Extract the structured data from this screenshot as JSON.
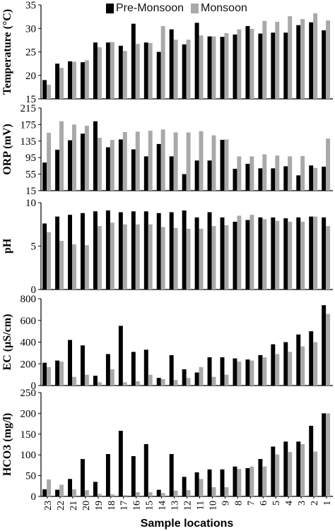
{
  "legend": {
    "pre_label": "Pre-Monsoon",
    "mon_label": "Monsoon"
  },
  "colors": {
    "pre": "#000000",
    "mon": "#a9a9a9"
  },
  "chart_data": [
    {
      "type": "bar",
      "title": "",
      "ylabel": "Temperature (°C)",
      "xlabel": "Sample locations",
      "categories": [
        "23",
        "22",
        "21",
        "20",
        "19",
        "18",
        "17",
        "16",
        "15",
        "14",
        "13",
        "12",
        "11",
        "10",
        "9",
        "8",
        "7",
        "6",
        "5",
        "4",
        "3",
        "2",
        "1"
      ],
      "ylim": [
        15,
        35
      ],
      "yticks": [
        15,
        20,
        25,
        30,
        35
      ],
      "series": [
        {
          "name": "Pre-Monsoon",
          "values": [
            19,
            22.5,
            23,
            22.8,
            27,
            27,
            26.3,
            31,
            27,
            25,
            29.8,
            26.6,
            31.2,
            28.3,
            28.2,
            28.7,
            30.5,
            28.9,
            29.1,
            29.1,
            30.7,
            31.3,
            29.6
          ]
        },
        {
          "name": "Monsoon",
          "values": [
            18,
            21.6,
            22.9,
            23.2,
            26,
            27.1,
            25.2,
            26.7,
            26.9,
            30.5,
            27.6,
            27.6,
            28.5,
            28.3,
            29,
            29.8,
            29.9,
            31.6,
            31.4,
            32.6,
            32,
            33.2,
            31.7
          ]
        }
      ]
    },
    {
      "type": "bar",
      "title": "",
      "ylabel": "ORP (mV)",
      "xlabel": "Sample locations",
      "categories": [
        "23",
        "22",
        "21",
        "20",
        "19",
        "18",
        "17",
        "16",
        "15",
        "14",
        "13",
        "12",
        "11",
        "10",
        "9",
        "8",
        "7",
        "6",
        "5",
        "4",
        "3",
        "2",
        "1"
      ],
      "ylim": [
        15,
        215
      ],
      "yticks": [
        15,
        55,
        95,
        135,
        175,
        215
      ],
      "series": [
        {
          "name": "Pre-Monsoon",
          "values": [
            83,
            114,
            137,
            153,
            183,
            120,
            139,
            115,
            98,
            128,
            98,
            55,
            88,
            88,
            138,
            68,
            80,
            69,
            69,
            74,
            52,
            76,
            73
          ]
        },
        {
          "name": "Monsoon",
          "values": [
            155,
            183,
            175,
            172,
            143,
            138,
            157,
            158,
            160,
            163,
            156,
            156,
            159,
            149,
            139,
            98,
            98,
            103,
            100,
            98,
            99,
            70,
            141
          ]
        }
      ]
    },
    {
      "type": "bar",
      "title": "",
      "ylabel": "pH",
      "xlabel": "Sample locations",
      "categories": [
        "23",
        "22",
        "21",
        "20",
        "19",
        "18",
        "17",
        "16",
        "15",
        "14",
        "13",
        "12",
        "11",
        "10",
        "9",
        "8",
        "7",
        "6",
        "5",
        "4",
        "3",
        "2",
        "1"
      ],
      "ylim": [
        0,
        10
      ],
      "yticks": [
        0,
        5,
        10
      ],
      "series": [
        {
          "name": "Pre-Monsoon",
          "values": [
            7.6,
            8.4,
            8.6,
            8.8,
            9.0,
            9.1,
            8.9,
            9.0,
            9.0,
            8.8,
            8.9,
            9.1,
            8.3,
            8.9,
            8.3,
            7.8,
            8.0,
            8.3,
            8.3,
            8.2,
            8.3,
            8.4,
            8.3
          ]
        },
        {
          "name": "Monsoon",
          "values": [
            6.6,
            5.6,
            5.2,
            5.1,
            7.3,
            7.7,
            7.5,
            7.5,
            7.5,
            7.2,
            7.1,
            7.0,
            7.0,
            7.3,
            7.4,
            8.5,
            8.6,
            8.1,
            7.9,
            7.8,
            7.8,
            8.4,
            7.3
          ]
        }
      ]
    },
    {
      "type": "bar",
      "title": "",
      "ylabel": "EC (µS/cm)",
      "xlabel": "Sample locations",
      "categories": [
        "23",
        "22",
        "21",
        "20",
        "19",
        "18",
        "17",
        "16",
        "15",
        "14",
        "13",
        "12",
        "11",
        "10",
        "9",
        "8",
        "7",
        "6",
        "5",
        "4",
        "3",
        "2",
        "1"
      ],
      "ylim": [
        0,
        800
      ],
      "yticks": [
        0,
        200,
        400,
        600,
        800
      ],
      "series": [
        {
          "name": "Pre-Monsoon",
          "values": [
            210,
            230,
            420,
            370,
            90,
            290,
            550,
            310,
            330,
            70,
            280,
            150,
            120,
            260,
            260,
            250,
            240,
            280,
            380,
            400,
            470,
            500,
            740
          ]
        },
        {
          "name": "Monsoon",
          "values": [
            170,
            220,
            80,
            100,
            30,
            150,
            30,
            40,
            100,
            60,
            50,
            70,
            170,
            80,
            100,
            220,
            230,
            260,
            290,
            310,
            360,
            400,
            660
          ]
        }
      ]
    },
    {
      "type": "bar",
      "title": "",
      "ylabel": "HCO3 (mg/l)",
      "xlabel": "Sample locations",
      "categories": [
        "23",
        "22",
        "21",
        "20",
        "19",
        "18",
        "17",
        "16",
        "15",
        "14",
        "13",
        "12",
        "11",
        "10",
        "9",
        "8",
        "7",
        "6",
        "5",
        "4",
        "3",
        "2",
        "1"
      ],
      "ylim": [
        0,
        250
      ],
      "yticks": [
        0,
        50,
        100,
        150,
        200,
        250
      ],
      "series": [
        {
          "name": "Pre-Monsoon",
          "values": [
            17,
            16,
            42,
            90,
            35,
            102,
            158,
            97,
            126,
            16,
            102,
            47,
            58,
            65,
            65,
            72,
            68,
            90,
            120,
            132,
            132,
            170,
            200
          ]
        },
        {
          "name": "Monsoon",
          "values": [
            41,
            28,
            17,
            15,
            6,
            5,
            3,
            10,
            10,
            8,
            14,
            15,
            42,
            22,
            22,
            66,
            72,
            72,
            101,
            107,
            126,
            108,
            200
          ]
        }
      ]
    }
  ],
  "axis_labels": {
    "panel_ylabels": [
      "Temperature (°C)",
      "ORP (mV)",
      "pH",
      "EC (µS/cm)",
      "HCO3 (mg/l)"
    ],
    "x_title": "Sample locations"
  }
}
